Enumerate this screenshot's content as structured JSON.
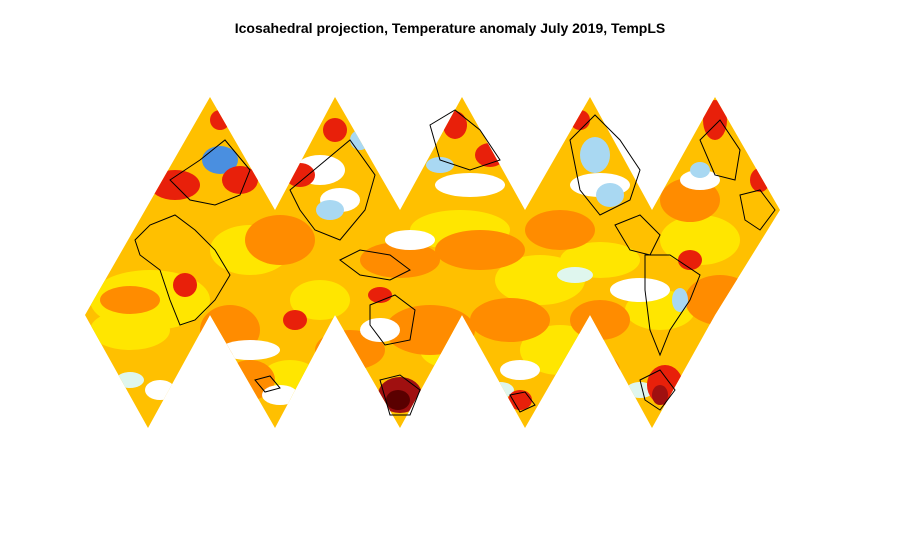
{
  "title": "Icosahedral projection, Temperature anomaly July 2019, TempLS",
  "palette": {
    "strong_cold": "#4a8fe0",
    "cold": "#a9d8f2",
    "near_zero": "#dff6ee",
    "neutral": "#ffffff",
    "warm_low": "#ffe600",
    "warm": "#ffc000",
    "warm_mid": "#ff8c00",
    "hot": "#e8200a",
    "very_hot": "#a01010",
    "extreme": "#5a0000",
    "coastline": "#000000"
  }
}
